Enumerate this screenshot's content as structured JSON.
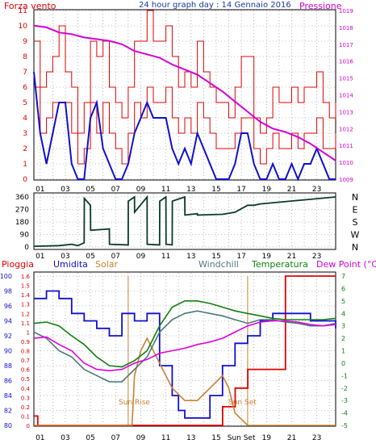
{
  "chart_data": [
    {
      "type": "line",
      "title": "24 hour graph day : 14 Gennaio 2016",
      "left_axis": {
        "label": "Forza vento",
        "color": "#e00000",
        "ylim": [
          0,
          11
        ],
        "ticks": [
          "0",
          "1",
          "2",
          "3",
          "4",
          "5",
          "6",
          "7",
          "8",
          "9",
          "10",
          "11"
        ]
      },
      "right_axis": {
        "label": "Pressione",
        "color": "#d400d4",
        "ylim": [
          1009,
          1019
        ],
        "ticks": [
          "1009",
          "1010",
          "1011",
          "1012",
          "1013",
          "1014",
          "1015",
          "1016",
          "1017",
          "1018",
          "1019"
        ]
      },
      "x_ticks": [
        "01",
        "03",
        "05",
        "07",
        "09",
        "11",
        "13",
        "15",
        "17",
        "19",
        "21",
        "23"
      ],
      "grid": true,
      "series": [
        {
          "name": "Forza vento",
          "color": "#e00000",
          "axis": "left",
          "x": [
            0,
            0.5,
            1,
            1.5,
            2,
            2.5,
            3,
            3.5,
            4,
            4.5,
            5,
            5.5,
            6,
            6.5,
            7,
            7.5,
            8,
            8.5,
            9,
            9.5,
            10,
            10.5,
            11,
            11.5,
            12,
            12.5,
            13,
            13.5,
            14,
            14.5,
            15,
            15.5,
            16,
            16.5,
            17,
            17.5,
            18,
            18.5,
            19,
            19.5,
            20,
            20.5,
            21,
            21.5,
            22,
            22.5,
            23,
            23.5,
            24
          ],
          "y": [
            6,
            3,
            4,
            5,
            5,
            5,
            3,
            1,
            2,
            5,
            3,
            5,
            3,
            2,
            1,
            3,
            5,
            4,
            6,
            5,
            5,
            6,
            4,
            3,
            4,
            3,
            5,
            4,
            3,
            2,
            2,
            2,
            3,
            4,
            4,
            2,
            1,
            2,
            3,
            2,
            2,
            3,
            2,
            3,
            3,
            4,
            2,
            2,
            3
          ]
        },
        {
          "name": "Raffica",
          "color": "#e00000",
          "axis": "left",
          "x": [
            0,
            0.5,
            1,
            1.5,
            2,
            2.5,
            3,
            3.5,
            4,
            4.5,
            5,
            5.5,
            6,
            6.5,
            7,
            7.5,
            8,
            8.5,
            9,
            9.5,
            10,
            10.5,
            11,
            11.5,
            12,
            12.5,
            13,
            13.5,
            14,
            14.5,
            15,
            15.5,
            16,
            16.5,
            17,
            17.5,
            18,
            18.5,
            19,
            19.5,
            20,
            20.5,
            21,
            21.5,
            22,
            22.5,
            23,
            23.5,
            24
          ],
          "y": [
            9,
            6,
            7,
            8,
            10,
            7,
            6,
            3,
            5,
            9,
            8,
            9,
            6,
            5,
            4,
            6,
            9,
            9,
            11,
            9,
            9,
            10,
            8,
            6,
            7,
            6,
            9,
            7,
            6,
            5,
            5,
            4,
            6,
            8,
            8,
            4,
            3,
            4,
            6,
            5,
            5,
            6,
            5,
            6,
            6,
            7,
            5,
            4,
            5
          ]
        },
        {
          "name": "Vento medio",
          "color": "#1010d0",
          "axis": "left",
          "x": [
            0,
            0.5,
            1,
            1.5,
            2,
            2.5,
            3,
            3.5,
            4,
            4.5,
            5,
            5.5,
            6,
            6.5,
            7,
            7.5,
            8,
            8.5,
            9,
            9.5,
            10,
            10.5,
            11,
            11.5,
            12,
            12.5,
            13,
            13.5,
            14,
            14.5,
            15,
            15.5,
            16,
            16.5,
            17,
            17.5,
            18,
            18.5,
            19,
            19.5,
            20,
            20.5,
            21,
            21.5,
            22,
            22.5,
            23,
            23.5,
            24
          ],
          "y": [
            7,
            3,
            1,
            3,
            5,
            5,
            1,
            0,
            0,
            4,
            5,
            2,
            1,
            0,
            0,
            1,
            3,
            4,
            5,
            4,
            4,
            4,
            2,
            1,
            2,
            1,
            3,
            2,
            1,
            0,
            0,
            0,
            1,
            3,
            3,
            1,
            0,
            0,
            1,
            0,
            0,
            1,
            0,
            1,
            1,
            2,
            1,
            0,
            0
          ]
        },
        {
          "name": "Pressione",
          "color": "#d400d4",
          "axis": "right",
          "x": [
            0,
            1,
            2,
            3,
            4,
            5,
            6,
            7,
            8,
            9,
            10,
            11,
            12,
            13,
            14,
            15,
            16,
            17,
            18,
            19,
            20,
            21,
            22,
            23,
            24
          ],
          "y": [
            1018.1,
            1018.0,
            1017.7,
            1017.6,
            1017.4,
            1017.3,
            1017.2,
            1017.0,
            1016.6,
            1016.4,
            1016.2,
            1015.8,
            1015.5,
            1015.2,
            1014.7,
            1014.2,
            1013.6,
            1013.0,
            1012.4,
            1012.0,
            1011.8,
            1011.5,
            1011.1,
            1010.6,
            1010.1
          ]
        }
      ]
    },
    {
      "type": "line",
      "y_ticks": [
        "0",
        "90",
        "180",
        "270",
        "360"
      ],
      "ylim": [
        0,
        360
      ],
      "right_labels": [
        "N",
        "W",
        "S",
        "E",
        "N"
      ],
      "x_ticks": [
        "01",
        "03",
        "05",
        "07",
        "09",
        "11",
        "13",
        "15",
        "17",
        "19",
        "21",
        "23"
      ],
      "grid": true,
      "series": [
        {
          "name": "Direzione",
          "color": "#0a3a2a",
          "x": [
            0,
            2,
            3,
            3.5,
            4,
            4.01,
            4.5,
            4.51,
            6,
            6.01,
            7.5,
            7.51,
            8,
            8.01,
            9,
            9.01,
            10,
            10.01,
            10.5,
            10.51,
            11,
            11.01,
            12,
            12.01,
            13,
            13.01,
            15,
            16,
            17,
            17.5,
            18,
            24
          ],
          "y": [
            5,
            10,
            20,
            10,
            30,
            350,
            300,
            120,
            130,
            20,
            15,
            330,
            360,
            250,
            360,
            20,
            15,
            330,
            360,
            20,
            15,
            330,
            360,
            230,
            240,
            230,
            235,
            250,
            300,
            300,
            310,
            360
          ]
        }
      ]
    },
    {
      "type": "line",
      "legend": [
        "Pioggia",
        "Umidita",
        "Solar",
        "Windchill",
        "Temperatura",
        "Dew Point (°C)"
      ],
      "left_axis_rain": {
        "ticks": [
          "0",
          "0.1",
          "0.2",
          "0.3",
          "0.4",
          "0.5",
          "0.6",
          "0.7",
          "0.8",
          "0.9",
          "1",
          "1.1",
          "1.2",
          "1.3",
          "1.4",
          "1.5",
          "1.6"
        ],
        "ylim": [
          0,
          1.6
        ]
      },
      "left_axis_humidity": {
        "ticks": [
          "80",
          "82",
          "84",
          "86",
          "88",
          "90",
          "92",
          "94",
          "96",
          "98",
          "100"
        ],
        "ylim": [
          80,
          100
        ]
      },
      "right_axis": {
        "ticks": [
          "-5",
          "-4",
          "-3",
          "-2",
          "-1",
          "0",
          "1",
          "2",
          "3",
          "4",
          "5",
          "6",
          "7"
        ],
        "ylim": [
          -5,
          7
        ]
      },
      "x_ticks": [
        "01",
        "03",
        "05",
        "07",
        "09",
        "11",
        "13",
        "15",
        "Sun Set",
        "19",
        "21",
        "23"
      ],
      "annotations": [
        "Sun Rise",
        "Sun Set"
      ],
      "grid": true,
      "series": [
        {
          "name": "Pioggia",
          "color": "#e00000",
          "axis": "rain",
          "x": [
            0,
            0.3,
            0.31,
            15,
            15.01,
            16,
            16.01,
            17,
            17.01,
            20,
            20.01,
            24
          ],
          "y": [
            0.1,
            0.1,
            0.0,
            0.0,
            0.2,
            0.2,
            0.4,
            0.4,
            0.6,
            0.6,
            1.6,
            1.6
          ]
        },
        {
          "name": "Umidita",
          "color": "#1010d0",
          "axis": "humidity",
          "x": [
            0,
            1,
            2,
            3,
            4,
            5,
            6,
            7,
            8,
            9,
            10,
            11,
            11.5,
            12,
            13,
            14,
            15,
            16,
            17,
            18,
            19,
            20,
            21,
            22,
            23,
            24
          ],
          "y": [
            97,
            98,
            97,
            95,
            94,
            93,
            92,
            95,
            94,
            95,
            88,
            84,
            82,
            81,
            81,
            84,
            88,
            91,
            92,
            94,
            95,
            95,
            95,
            94,
            94,
            93
          ]
        },
        {
          "name": "Solar",
          "color": "#c88030",
          "axis": "right",
          "x": [
            0,
            7,
            7.8,
            8,
            8.5,
            9,
            10,
            11,
            12,
            13,
            14,
            15,
            15.5,
            16,
            17,
            24
          ],
          "y": [
            -5,
            -5,
            -5,
            -1,
            1,
            2,
            0,
            -2,
            -3,
            -3,
            -2,
            -1,
            -2,
            -4,
            -5,
            -5
          ]
        },
        {
          "name": "Windchill",
          "color": "#4a7a7a",
          "axis": "right",
          "x": [
            0,
            1,
            2,
            3,
            4,
            5,
            6,
            7,
            8,
            9,
            10,
            11,
            12,
            13,
            14,
            15,
            16,
            17,
            18,
            19,
            20,
            21,
            22,
            23,
            24
          ],
          "y": [
            2.5,
            2.0,
            1.0,
            0.5,
            -0.5,
            -1.0,
            -1.5,
            -1.5,
            -0.5,
            0.5,
            2.5,
            3.5,
            4.0,
            4.2,
            4.0,
            3.8,
            3.5,
            3.2,
            3.5,
            3.5,
            3.3,
            3.2,
            3.0,
            3.0,
            3.2
          ]
        },
        {
          "name": "Temperatura",
          "color": "#108010",
          "axis": "right",
          "x": [
            0,
            1,
            2,
            3,
            4,
            5,
            6,
            7,
            8,
            9,
            10,
            11,
            12,
            13,
            14,
            15,
            16,
            17,
            18,
            19,
            20,
            21,
            22,
            23,
            24
          ],
          "y": [
            3.2,
            3.3,
            3.0,
            2.2,
            1.5,
            0.5,
            -0.2,
            -0.3,
            0.2,
            1.0,
            3.0,
            4.5,
            5.0,
            5.0,
            4.8,
            4.5,
            4.2,
            4.0,
            3.8,
            3.6,
            3.5,
            3.5,
            3.5,
            3.5,
            3.6
          ]
        },
        {
          "name": "Dew Point (°C)",
          "color": "#e000e0",
          "axis": "right",
          "x": [
            0,
            1,
            2,
            3,
            4,
            5,
            6,
            7,
            8,
            9,
            10,
            11,
            12,
            13,
            14,
            15,
            16,
            17,
            18,
            19,
            20,
            21,
            22,
            23,
            24
          ],
          "y": [
            2.0,
            2.1,
            1.5,
            1.0,
            0.0,
            -0.5,
            -0.6,
            -0.5,
            0.0,
            0.3,
            0.8,
            1.0,
            1.2,
            1.5,
            1.7,
            2.0,
            2.5,
            3.0,
            3.3,
            3.4,
            3.4,
            3.3,
            3.1,
            3.0,
            3.1
          ]
        }
      ]
    }
  ]
}
